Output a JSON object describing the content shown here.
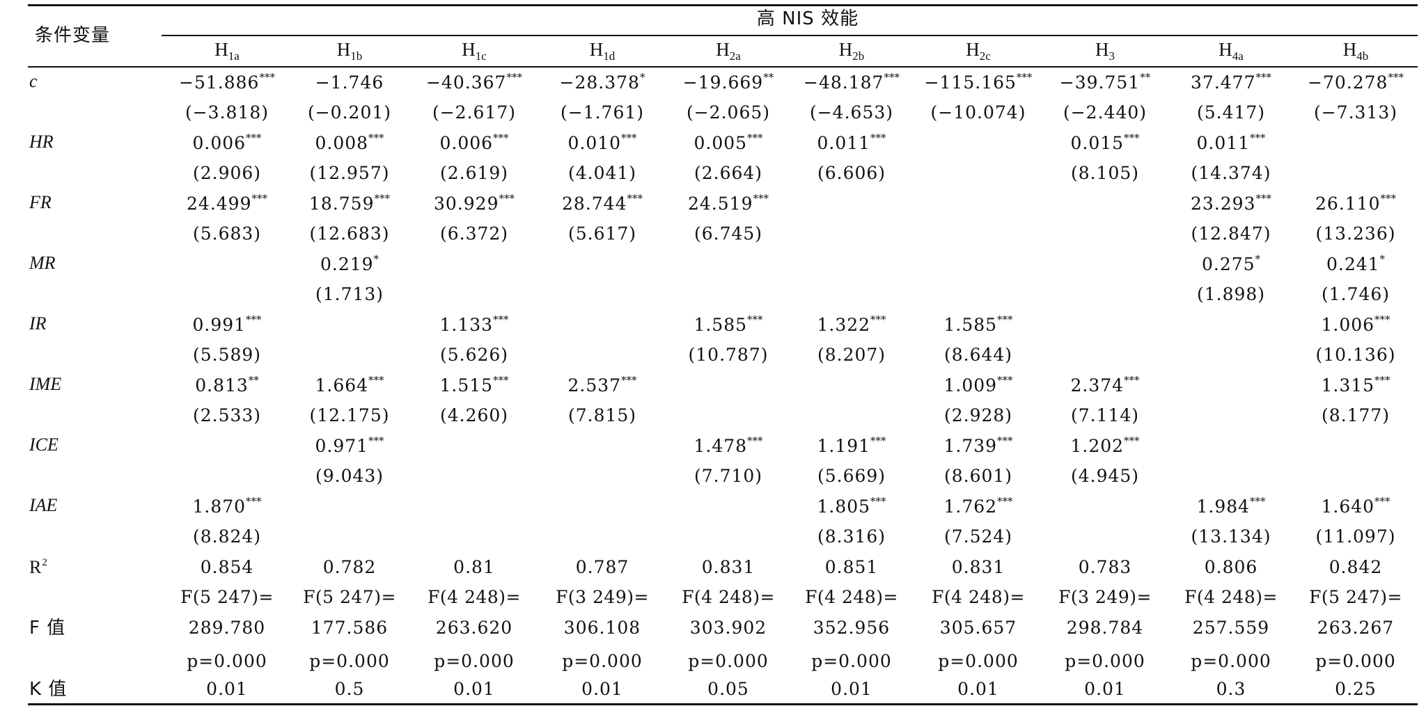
{
  "header": {
    "row_var_label": "条件变量",
    "group_label": "高 NIS 效能",
    "columns": [
      {
        "base": "H",
        "sub": "1a"
      },
      {
        "base": "H",
        "sub": "1b"
      },
      {
        "base": "H",
        "sub": "1c"
      },
      {
        "base": "H",
        "sub": "1d"
      },
      {
        "base": "H",
        "sub": "2a"
      },
      {
        "base": "H",
        "sub": "2b"
      },
      {
        "base": "H",
        "sub": "2c"
      },
      {
        "base": "H",
        "sub": "3"
      },
      {
        "base": "H",
        "sub": "4a"
      },
      {
        "base": "H",
        "sub": "4b"
      }
    ]
  },
  "rows": [
    {
      "name": "c",
      "italic": true,
      "coef": [
        "−51.886",
        "−1.746",
        "−40.367",
        "−28.378",
        "−19.669",
        "−48.187",
        "−115.165",
        "−39.751",
        "37.477",
        "−70.278"
      ],
      "sig": [
        "***",
        "",
        "***",
        "*",
        "**",
        "***",
        "***",
        "**",
        "***",
        "***"
      ],
      "t": [
        "(−3.818)",
        "(−0.201)",
        "(−2.617)",
        "(−1.761)",
        "(−2.065)",
        "(−4.653)",
        "(−10.074)",
        "(−2.440)",
        "(5.417)",
        "(−7.313)"
      ]
    },
    {
      "name": "HR",
      "italic": true,
      "coef": [
        "0.006",
        "0.008",
        "0.006",
        "0.010",
        "0.005",
        "0.011",
        "",
        "0.015",
        "0.011",
        ""
      ],
      "sig": [
        "***",
        "***",
        "***",
        "***",
        "***",
        "***",
        "",
        "***",
        "***",
        ""
      ],
      "t": [
        "(2.906)",
        "(12.957)",
        "(2.619)",
        "(4.041)",
        "(2.664)",
        "(6.606)",
        "",
        "(8.105)",
        "(14.374)",
        ""
      ]
    },
    {
      "name": "FR",
      "italic": true,
      "coef": [
        "24.499",
        "18.759",
        "30.929",
        "28.744",
        "24.519",
        "",
        "",
        "",
        "23.293",
        "26.110"
      ],
      "sig": [
        "***",
        "***",
        "***",
        "***",
        "***",
        "",
        "",
        "",
        "***",
        "***"
      ],
      "t": [
        "(5.683)",
        "(12.683)",
        "(6.372)",
        "(5.617)",
        "(6.745)",
        "",
        "",
        "",
        "(12.847)",
        "(13.236)"
      ]
    },
    {
      "name": "MR",
      "italic": true,
      "coef": [
        "",
        "0.219",
        "",
        "",
        "",
        "",
        "",
        "",
        "0.275",
        "0.241"
      ],
      "sig": [
        "",
        "*",
        "",
        "",
        "",
        "",
        "",
        "",
        "*",
        "*"
      ],
      "t": [
        "",
        "(1.713)",
        "",
        "",
        "",
        "",
        "",
        "",
        "(1.898)",
        "(1.746)"
      ]
    },
    {
      "name": "IR",
      "italic": true,
      "coef": [
        "0.991",
        "",
        "1.133",
        "",
        "1.585",
        "1.322",
        "1.585",
        "",
        "",
        "1.006"
      ],
      "sig": [
        "***",
        "",
        "***",
        "",
        "***",
        "***",
        "***",
        "",
        "",
        "***"
      ],
      "t": [
        "(5.589)",
        "",
        "(5.626)",
        "",
        "(10.787)",
        "(8.207)",
        "(8.644)",
        "",
        "",
        "(10.136)"
      ]
    },
    {
      "name": "IME",
      "italic": true,
      "coef": [
        "0.813",
        "1.664",
        "1.515",
        "2.537",
        "",
        "",
        "1.009",
        "2.374",
        "",
        "1.315"
      ],
      "sig": [
        "**",
        "***",
        "***",
        "***",
        "",
        "",
        "***",
        "***",
        "",
        "***"
      ],
      "t": [
        "(2.533)",
        "(12.175)",
        "(4.260)",
        "(7.815)",
        "",
        "",
        "(2.928)",
        "(7.114)",
        "",
        "(8.177)"
      ]
    },
    {
      "name": "ICE",
      "italic": true,
      "coef": [
        "",
        "0.971",
        "",
        "",
        "1.478",
        "1.191",
        "1.739",
        "1.202",
        "",
        ""
      ],
      "sig": [
        "",
        "***",
        "",
        "",
        "***",
        "***",
        "***",
        "***",
        "",
        ""
      ],
      "t": [
        "",
        "(9.043)",
        "",
        "",
        "(7.710)",
        "(5.669)",
        "(8.601)",
        "(4.945)",
        "",
        ""
      ]
    },
    {
      "name": "IAE",
      "italic": true,
      "coef": [
        "1.870",
        "",
        "",
        "",
        "",
        "1.805",
        "1.762",
        "",
        "1.984",
        "1.640"
      ],
      "sig": [
        "***",
        "",
        "",
        "",
        "",
        "***",
        "***",
        "",
        "***",
        "***"
      ],
      "t": [
        "(8.824)",
        "",
        "",
        "",
        "",
        "(8.316)",
        "(7.524)",
        "",
        "(13.134)",
        "(11.097)"
      ]
    }
  ],
  "r2": {
    "label": "R",
    "sup": "2",
    "values": [
      "0.854",
      "0.782",
      "0.81",
      "0.787",
      "0.831",
      "0.851",
      "0.831",
      "0.783",
      "0.806",
      "0.842"
    ]
  },
  "f_row": {
    "label": "F 值",
    "df": [
      "F(5 247)=",
      "F(5 247)=",
      "F(4 248)=",
      "F(3 249)=",
      "F(4 248)=",
      "F(4 248)=",
      "F(4 248)=",
      "F(3 249)=",
      "F(4 248)=",
      "F(5 247)="
    ],
    "values": [
      "289.780",
      "177.586",
      "263.620",
      "306.108",
      "303.902",
      "352.956",
      "305.657",
      "298.784",
      "257.559",
      "263.267"
    ],
    "p": [
      "p=0.000",
      "p=0.000",
      "p=0.000",
      "p=0.000",
      "p=0.000",
      "p=0.000",
      "p=0.000",
      "p=0.000",
      "p=0.000",
      "p=0.000"
    ]
  },
  "k_row": {
    "label": "K 值",
    "values": [
      "0.01",
      "0.5",
      "0.01",
      "0.01",
      "0.05",
      "0.01",
      "0.01",
      "0.01",
      "0.3",
      "0.25"
    ]
  }
}
